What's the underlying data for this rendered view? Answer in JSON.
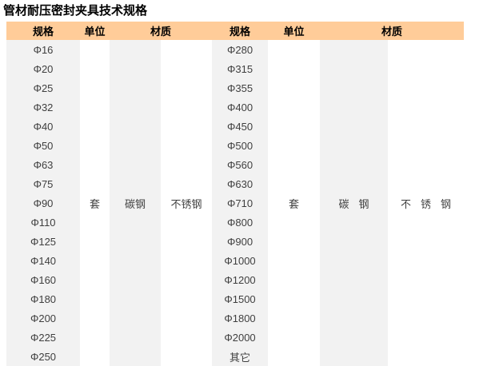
{
  "page": {
    "title": "管材耐压密封夹具技术规格"
  },
  "colors": {
    "header_bg": "#FFCC99",
    "stripe_bg": "#F2F2F2",
    "body_text": "#3F3F3F",
    "header_text": "#000000"
  },
  "table": {
    "headers": {
      "spec": "规格",
      "unit": "单位",
      "material": "材质"
    },
    "left": {
      "specs": [
        "Φ16",
        "Φ20",
        "Φ25",
        "Φ32",
        "Φ40",
        "Φ50",
        "Φ63",
        "Φ75",
        "Φ90",
        "Φ110",
        "Φ125",
        "Φ140",
        "Φ160",
        "Φ180",
        "Φ200",
        "Φ225",
        "Φ250"
      ],
      "unit": "套",
      "material_carbon": "碳钢",
      "material_stainless": "不锈钢"
    },
    "right": {
      "specs": [
        "Φ280",
        "Φ315",
        "Φ355",
        "Φ400",
        "Φ450",
        "Φ500",
        "Φ560",
        "Φ630",
        "Φ710",
        "Φ800",
        "Φ900",
        "Φ1000",
        "Φ1200",
        "Φ1500",
        "Φ1800",
        "Φ2000",
        "其它"
      ],
      "unit": "套",
      "material_carbon": "碳钢",
      "material_stainless": "不锈钢"
    }
  }
}
